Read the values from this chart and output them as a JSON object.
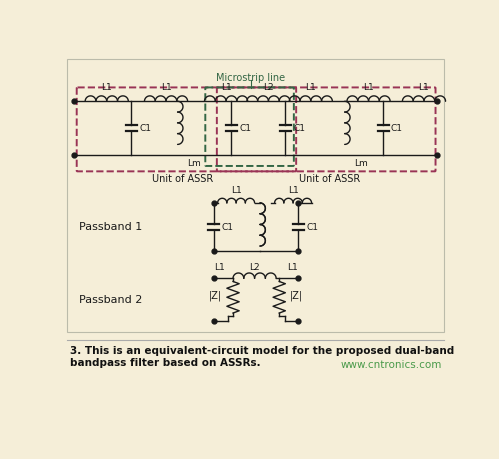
{
  "bg_color": "#f5eed8",
  "panel_bg": "#f5eed8",
  "line_color": "#1a1a1a",
  "dashed_red": "#993355",
  "dashed_green": "#336644",
  "caption_color": "#111111",
  "website_color": "#4a9a4a",
  "title_text": "3. This is an equivalent-circuit model for the proposed dual-band\nbandpass filter based on ASSRs.",
  "website_text": "www.cntronics.com",
  "microstrip_label": "Microstrip line",
  "unit_assr": "Unit of ASSR",
  "passband1": "Passband 1",
  "passband2": "Passband 2"
}
